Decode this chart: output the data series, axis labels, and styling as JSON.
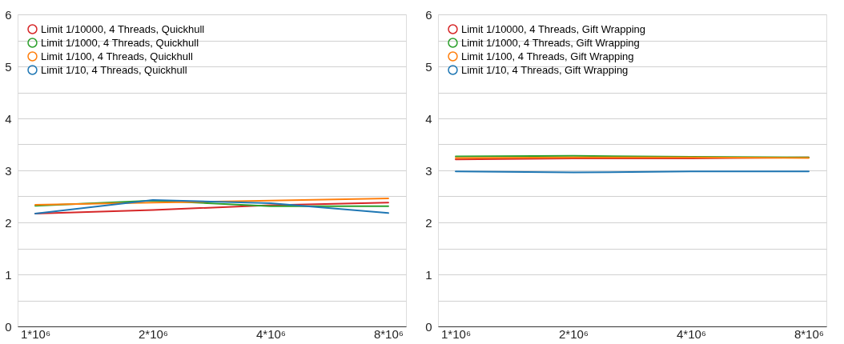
{
  "chart_data": [
    {
      "type": "line",
      "categories": [
        "1*10⁶",
        "2*10⁶",
        "4*10⁶",
        "8*10⁶"
      ],
      "ylim": [
        0,
        6
      ],
      "yticks": [
        0,
        {
          "value": 0.5,
          "label": null
        },
        1,
        {
          "value": 1.5,
          "label": null
        },
        2,
        {
          "value": 2.5,
          "label": null
        },
        3,
        {
          "value": 3.5,
          "label": null
        },
        4,
        {
          "value": 4.5,
          "label": null
        },
        5,
        {
          "value": 5.5,
          "label": null
        },
        6
      ],
      "grid": "y",
      "legend": "top left",
      "marker": "none",
      "line_style": "solid",
      "series": [
        {
          "name": "Limit 1/10000, 4 Threads, Quickhull",
          "color": "#d62728",
          "values": [
            2.17,
            2.24,
            2.33,
            2.38
          ]
        },
        {
          "name": "Limit 1/1000, 4 Threads, Quickhull",
          "color": "#2ca02c",
          "values": [
            2.32,
            2.42,
            2.31,
            2.31
          ]
        },
        {
          "name": "Limit 1/100, 4 Threads, Quickhull",
          "color": "#ff7f0e",
          "values": [
            2.34,
            2.38,
            2.42,
            2.46
          ]
        },
        {
          "name": "Limit 1/10, 4 Threads, Quickhull",
          "color": "#1f77b4",
          "values": [
            2.17,
            2.43,
            2.37,
            2.18
          ]
        }
      ]
    },
    {
      "type": "line",
      "categories": [
        "1*10⁶",
        "2*10⁶",
        "4*10⁶",
        "8*10⁶"
      ],
      "ylim": [
        0,
        6
      ],
      "yticks": [
        0,
        {
          "value": 0.5,
          "label": null
        },
        1,
        {
          "value": 1.5,
          "label": null
        },
        2,
        {
          "value": 2.5,
          "label": null
        },
        3,
        {
          "value": 3.5,
          "label": null
        },
        4,
        {
          "value": 4.5,
          "label": null
        },
        5,
        {
          "value": 5.5,
          "label": null
        },
        6
      ],
      "grid": "y",
      "legend": "top left",
      "marker": "none",
      "line_style": "solid",
      "series": [
        {
          "name": "Limit 1/10000, 4 Threads, Gift Wrapping",
          "color": "#d62728",
          "values": [
            3.21,
            3.23,
            3.23,
            3.25
          ]
        },
        {
          "name": "Limit 1/1000, 4 Threads, Gift Wrapping",
          "color": "#2ca02c",
          "values": [
            3.27,
            3.28,
            3.26,
            3.25
          ]
        },
        {
          "name": "Limit 1/100, 4 Threads, Gift Wrapping",
          "color": "#ff7f0e",
          "values": [
            3.24,
            3.25,
            3.25,
            3.24
          ]
        },
        {
          "name": "Limit 1/10, 4 Threads, Gift Wrapping",
          "color": "#1f77b4",
          "values": [
            2.98,
            2.96,
            2.98,
            2.98
          ]
        }
      ]
    }
  ]
}
